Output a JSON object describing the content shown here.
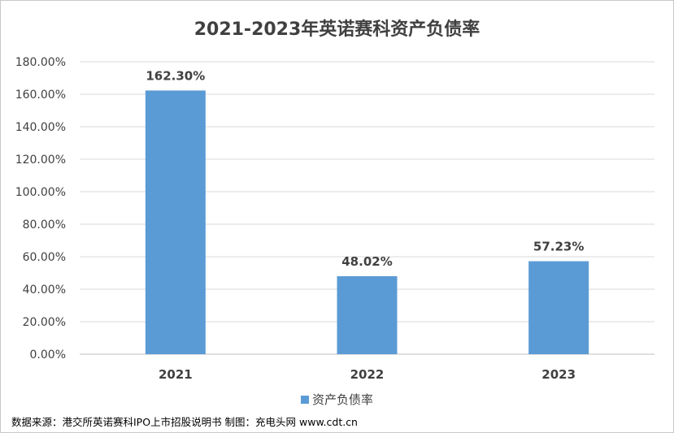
{
  "chart_data": {
    "type": "bar",
    "title": "2021-2023年英诺赛科资产负债率",
    "categories": [
      "2021",
      "2022",
      "2023"
    ],
    "series": [
      {
        "name": "资产负债率",
        "values": [
          162.3,
          48.02,
          57.23
        ],
        "color": "#5b9bd5"
      }
    ],
    "data_labels": [
      "162.30%",
      "48.02%",
      "57.23%"
    ],
    "ylim": [
      0,
      180
    ],
    "yticks": [
      0,
      20,
      40,
      60,
      80,
      100,
      120,
      140,
      160,
      180
    ],
    "ytick_labels": [
      "0.00%",
      "20.00%",
      "40.00%",
      "60.00%",
      "80.00%",
      "100.00%",
      "120.00%",
      "140.00%",
      "160.00%",
      "180.00%"
    ],
    "grid": true,
    "legend_position": "bottom"
  },
  "source_note": "数据来源：港交所英诺赛科IPO上市招股说明书 制图：充电头网 www.cdt.cn"
}
